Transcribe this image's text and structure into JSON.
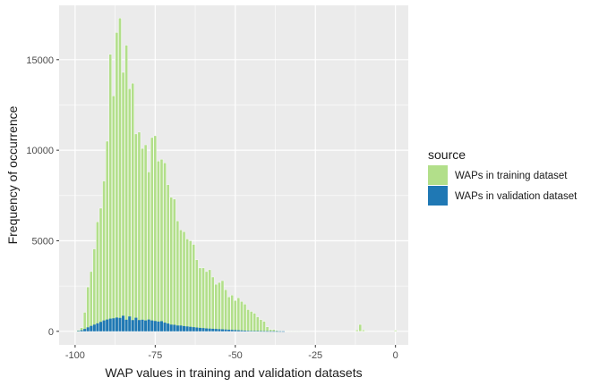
{
  "chart_data": {
    "type": "bar",
    "xlabel": "WAP values in training and validation datasets",
    "ylabel": "Frequency of occurrence",
    "xlim": [
      -105,
      4
    ],
    "ylim": [
      -750,
      18000
    ],
    "x_ticks": [
      -100,
      -75,
      -50,
      -25,
      0
    ],
    "x_tick_labels": [
      "-100",
      "-75",
      "-50",
      "-25",
      "0"
    ],
    "y_ticks": [
      0,
      5000,
      10000,
      15000
    ],
    "y_tick_labels": [
      "0",
      "5000",
      "10000",
      "15000"
    ],
    "grid": true,
    "legend": {
      "title": "source",
      "position": "right",
      "entries": [
        {
          "label": "WAPs in training dataset",
          "color": "#b2df8a"
        },
        {
          "label": "WAPs in validation dataset",
          "color": "#1f78b4"
        }
      ]
    },
    "series": [
      {
        "name": "WAPs in training dataset",
        "color": "#b2df8a",
        "x": [
          -104,
          -103,
          -102,
          -101,
          -100,
          -99,
          -98,
          -97,
          -96,
          -95,
          -94,
          -93,
          -92,
          -91,
          -90,
          -89,
          -88,
          -87,
          -86,
          -85,
          -84,
          -83,
          -82,
          -81,
          -80,
          -79,
          -78,
          -77,
          -76,
          -75,
          -74,
          -73,
          -72,
          -71,
          -70,
          -69,
          -68,
          -67,
          -66,
          -65,
          -64,
          -63,
          -62,
          -61,
          -60,
          -59,
          -58,
          -57,
          -56,
          -55,
          -54,
          -53,
          -52,
          -51,
          -50,
          -49,
          -48,
          -47,
          -46,
          -45,
          -44,
          -43,
          -42,
          -41,
          -40,
          -39,
          -38,
          -37,
          -36,
          -35,
          -34,
          -33,
          -32,
          -31,
          -30,
          -29,
          -28,
          -27,
          -26,
          -25,
          -24,
          -23,
          -22,
          -21,
          -20,
          -19,
          -18,
          -17,
          -16,
          -15,
          -14,
          -13,
          -12,
          -11,
          -10,
          -9,
          -8,
          -7,
          -6,
          -5,
          -4,
          -3,
          -2,
          -1,
          0
        ],
        "values": [
          0,
          0,
          0,
          0,
          10,
          60,
          200,
          1050,
          2450,
          3300,
          4550,
          6050,
          6800,
          8300,
          10500,
          15300,
          13000,
          16500,
          17300,
          14300,
          15800,
          13400,
          13700,
          10900,
          11000,
          10100,
          10300,
          8800,
          10700,
          10800,
          9400,
          9500,
          9300,
          8100,
          7400,
          7300,
          6100,
          5600,
          5500,
          5100,
          5000,
          4800,
          3950,
          3500,
          3500,
          3300,
          3400,
          3000,
          2600,
          2700,
          2800,
          2300,
          1900,
          2000,
          1700,
          1850,
          1650,
          1500,
          1200,
          1100,
          1000,
          800,
          650,
          550,
          250,
          100,
          100,
          50,
          30,
          20,
          20,
          10,
          10,
          10,
          10,
          0,
          0,
          0,
          0,
          0,
          0,
          0,
          0,
          0,
          0,
          0,
          0,
          0,
          0,
          0,
          0,
          0,
          80,
          380,
          80,
          30,
          0,
          0,
          0,
          0,
          0,
          0,
          0,
          0,
          60
        ]
      },
      {
        "name": "WAPs in validation dataset",
        "color": "#1f78b4",
        "x": [
          -99,
          -98,
          -97,
          -96,
          -95,
          -94,
          -93,
          -92,
          -91,
          -90,
          -89,
          -88,
          -87,
          -86,
          -85,
          -84,
          -83,
          -82,
          -81,
          -80,
          -79,
          -78,
          -77,
          -76,
          -75,
          -74,
          -73,
          -72,
          -71,
          -70,
          -69,
          -68,
          -67,
          -66,
          -65,
          -64,
          -63,
          -62,
          -61,
          -60,
          -59,
          -58,
          -57,
          -56,
          -55,
          -54,
          -53,
          -52,
          -51,
          -50,
          -49,
          -48,
          -47,
          -46,
          -45,
          -44,
          -43,
          -42,
          -41,
          -40,
          -39,
          -38,
          -37,
          -36,
          -35
        ],
        "values": [
          20,
          60,
          130,
          220,
          300,
          370,
          440,
          520,
          600,
          650,
          700,
          720,
          760,
          740,
          860,
          640,
          820,
          620,
          750,
          620,
          640,
          600,
          650,
          600,
          570,
          540,
          560,
          480,
          430,
          370,
          360,
          320,
          320,
          290,
          270,
          250,
          230,
          210,
          190,
          180,
          160,
          150,
          140,
          130,
          120,
          110,
          100,
          90,
          80,
          70,
          60,
          50,
          40,
          30,
          25,
          20,
          15,
          10,
          8,
          6,
          5,
          4,
          3,
          2,
          1
        ]
      }
    ]
  }
}
